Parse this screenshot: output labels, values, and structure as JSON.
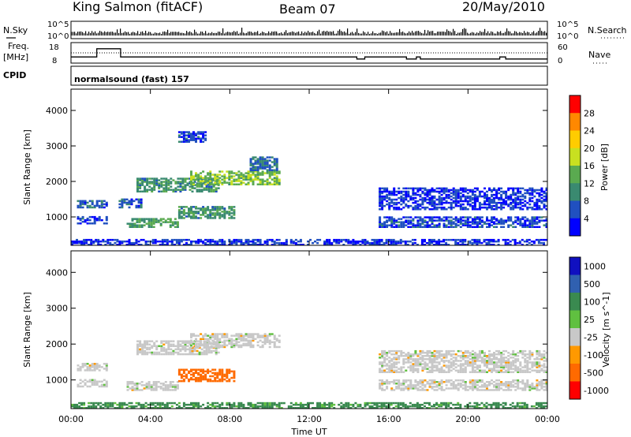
{
  "header": {
    "station": "King Salmon (fitACF)",
    "beam": "Beam 07",
    "date": "20/May/2010"
  },
  "left_labels": {
    "nsky": "N.Sky",
    "freq": "Freq.",
    "mhz": "[MHz]",
    "cpid": "CPID",
    "nsky_ticks": [
      "10^5",
      "10^0"
    ],
    "freq_ticks": [
      "18",
      "8"
    ]
  },
  "right_labels": {
    "nsearch": "N.Search",
    "nave": "Nave",
    "nsearch_ticks": [
      "10^5",
      "10^0"
    ],
    "nave_ticks": [
      "60",
      "0"
    ]
  },
  "cpid_text": "normalsound (fast) 157",
  "chart_data": [
    {
      "type": "heatmap",
      "name": "Power",
      "ylabel": "Slant Range [km]",
      "yticks": [
        "1000",
        "2000",
        "3000",
        "4000"
      ],
      "ylim": [
        200,
        4600
      ],
      "colorbar_label": "Power [dB]",
      "colorbar_ticks": [
        "4",
        "8",
        "12",
        "16",
        "20",
        "24",
        "28"
      ],
      "colorbar_range": [
        0,
        30
      ],
      "colorbar_colors": [
        "#0000ff",
        "#2050c0",
        "#3a8a70",
        "#5aaa50",
        "#c8e020",
        "#ffcc00",
        "#ff8800",
        "#ff0000"
      ],
      "regions": [
        {
          "t": [
            0.3,
            1.8
          ],
          "r": [
            1250,
            1450
          ],
          "level": 6
        },
        {
          "t": [
            0.3,
            1.8
          ],
          "r": [
            800,
            1000
          ],
          "level": 5
        },
        {
          "t": [
            2.4,
            3.6
          ],
          "r": [
            1250,
            1500
          ],
          "level": 6
        },
        {
          "t": [
            3.3,
            7.5
          ],
          "r": [
            1700,
            2100
          ],
          "level": 10
        },
        {
          "t": [
            6.0,
            10.5
          ],
          "r": [
            1900,
            2300
          ],
          "level": 14
        },
        {
          "t": [
            2.8,
            5.4
          ],
          "r": [
            700,
            950
          ],
          "level": 11
        },
        {
          "t": [
            5.4,
            8.2
          ],
          "r": [
            950,
            1300
          ],
          "level": 10
        },
        {
          "t": [
            9.0,
            10.4
          ],
          "r": [
            2300,
            2700
          ],
          "level": 7
        },
        {
          "t": [
            5.4,
            6.8
          ],
          "r": [
            3100,
            3400
          ],
          "level": 5
        },
        {
          "t": [
            15.5,
            24
          ],
          "r": [
            1200,
            1800
          ],
          "level": 4
        },
        {
          "t": [
            15.5,
            24
          ],
          "r": [
            700,
            1000
          ],
          "level": 5
        },
        {
          "t": [
            0,
            24
          ],
          "r": [
            200,
            350
          ],
          "level": 4
        }
      ]
    },
    {
      "type": "heatmap",
      "name": "Velocity",
      "ylabel": "Slant Range [km]",
      "yticks": [
        "1000",
        "2000",
        "3000",
        "4000"
      ],
      "ylim": [
        200,
        4600
      ],
      "colorbar_label": "Velocity [m s^-1]",
      "colorbar_ticks": [
        "1000",
        "500",
        "100",
        "25",
        "-25",
        "-100",
        "-500",
        "-1000"
      ],
      "colorbar_colors": [
        "#1010c0",
        "#3060b0",
        "#3a8a50",
        "#60c040",
        "#c8c8c8",
        "#ff9900",
        "#ff6a00",
        "#ff0000"
      ],
      "regions": [
        {
          "t": [
            0.3,
            1.8
          ],
          "r": [
            1250,
            1450
          ],
          "v": 0
        },
        {
          "t": [
            0.3,
            1.8
          ],
          "r": [
            800,
            1000
          ],
          "v": 0
        },
        {
          "t": [
            3.3,
            7.5
          ],
          "r": [
            1700,
            2100
          ],
          "v": 0
        },
        {
          "t": [
            6.0,
            10.5
          ],
          "r": [
            1900,
            2300
          ],
          "v": 0
        },
        {
          "t": [
            2.8,
            5.4
          ],
          "r": [
            700,
            950
          ],
          "v": 0
        },
        {
          "t": [
            5.4,
            8.2
          ],
          "r": [
            950,
            1300
          ],
          "v": -700
        },
        {
          "t": [
            15.5,
            24
          ],
          "r": [
            700,
            1000
          ],
          "v": 0
        },
        {
          "t": [
            15.5,
            24
          ],
          "r": [
            1200,
            1800
          ],
          "v": 0
        },
        {
          "t": [
            0,
            24
          ],
          "r": [
            200,
            350
          ],
          "v": 50
        }
      ]
    }
  ],
  "x_axis": {
    "label": "Time UT",
    "ticks": [
      "00:00",
      "04:00",
      "08:00",
      "12:00",
      "16:00",
      "20:00",
      "00:00"
    ],
    "range_hours": [
      0,
      24
    ]
  },
  "freq_series": {
    "hours": [
      0,
      1.3,
      1.3,
      2.5,
      2.5,
      14.4,
      14.4,
      14.8,
      14.8,
      16.9,
      16.9,
      17.4,
      17.4,
      17.6,
      17.6,
      21.6,
      21.6,
      21.9,
      21.9,
      24
    ],
    "mhz": [
      11,
      11,
      15,
      15,
      11,
      11,
      10,
      10,
      11,
      11,
      10,
      10,
      11,
      11,
      10,
      10,
      11,
      11,
      10,
      10
    ]
  }
}
